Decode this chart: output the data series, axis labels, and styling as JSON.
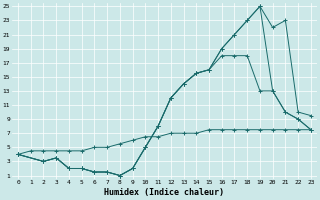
{
  "bg_color": "#cce8e8",
  "grid_color": "#ffffff",
  "line_color": "#1a6b6b",
  "xlabel": "Humidex (Indice chaleur)",
  "xlim": [
    -0.5,
    23.5
  ],
  "ylim": [
    0.5,
    25.5
  ],
  "xticks": [
    0,
    1,
    2,
    3,
    4,
    5,
    6,
    7,
    8,
    9,
    10,
    11,
    12,
    13,
    14,
    15,
    16,
    17,
    18,
    19,
    20,
    21,
    22,
    23
  ],
  "yticks": [
    1,
    3,
    5,
    7,
    9,
    11,
    13,
    15,
    17,
    19,
    21,
    23,
    25
  ],
  "curves": [
    {
      "x": [
        0,
        1,
        2,
        3,
        4,
        5,
        6,
        7,
        8,
        9,
        10,
        11,
        12,
        13,
        14,
        15,
        16,
        17,
        18,
        19,
        20,
        21,
        22,
        23
      ],
      "y": [
        4,
        4.5,
        4.5,
        4.5,
        4.5,
        4.5,
        5,
        5,
        5.5,
        6,
        6.5,
        6.5,
        7,
        7,
        7,
        7.5,
        7.5,
        7.5,
        7.5,
        7.5,
        7.5,
        7.5,
        7.5,
        7.5
      ]
    },
    {
      "x": [
        0,
        2,
        3,
        4,
        5,
        6,
        7,
        8,
        9,
        10,
        11,
        12,
        13,
        14,
        15,
        16,
        17,
        18,
        19,
        20,
        21,
        22,
        23
      ],
      "y": [
        4,
        3,
        3.5,
        2,
        2,
        1.5,
        1.5,
        1,
        2,
        5,
        8,
        12,
        14,
        15.5,
        16,
        19,
        21,
        23,
        25,
        22,
        23,
        10,
        9.5
      ]
    },
    {
      "x": [
        0,
        2,
        3,
        4,
        5,
        6,
        7,
        8,
        9,
        10,
        11,
        12,
        13,
        14,
        15,
        16,
        17,
        18,
        19,
        20,
        21,
        22,
        23
      ],
      "y": [
        4,
        3,
        3.5,
        2,
        2,
        1.5,
        1.5,
        1,
        2,
        5,
        8,
        12,
        14,
        15.5,
        16,
        19,
        21,
        23,
        25,
        13,
        10,
        9,
        7.5
      ]
    },
    {
      "x": [
        0,
        2,
        3,
        4,
        5,
        6,
        7,
        8,
        9,
        10,
        11,
        12,
        13,
        14,
        15,
        16,
        17,
        18,
        19,
        20,
        21,
        22,
        23
      ],
      "y": [
        4,
        3,
        3.5,
        2,
        2,
        1.5,
        1.5,
        1,
        2,
        5,
        8,
        12,
        14,
        15.5,
        16,
        18,
        18,
        18,
        13,
        13,
        10,
        9,
        7.5
      ]
    }
  ]
}
